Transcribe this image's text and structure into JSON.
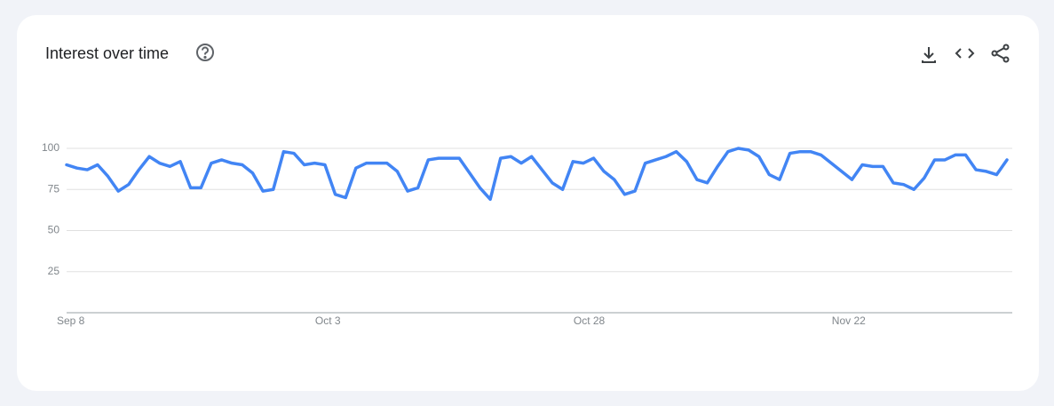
{
  "chart_data": {
    "type": "line",
    "title": "Interest over time",
    "categories": [
      "Sep 8",
      null,
      null,
      null,
      null,
      null,
      null,
      null,
      null,
      null,
      null,
      null,
      null,
      null,
      null,
      null,
      null,
      null,
      null,
      null,
      null,
      null,
      null,
      null,
      null,
      "Oct 3",
      null,
      null,
      null,
      null,
      null,
      null,
      null,
      null,
      null,
      null,
      null,
      null,
      null,
      null,
      null,
      null,
      null,
      null,
      null,
      null,
      null,
      null,
      null,
      null,
      "Oct 28",
      null,
      null,
      null,
      null,
      null,
      null,
      null,
      null,
      null,
      null,
      null,
      null,
      null,
      null,
      null,
      null,
      null,
      null,
      null,
      null,
      null,
      null,
      null,
      null,
      "Nov 22",
      null,
      null,
      null,
      null,
      null,
      null,
      null,
      null,
      null,
      null,
      null,
      null,
      null,
      null,
      null,
      null
    ],
    "series": [
      {
        "color": "#4285f4",
        "values": [
          90,
          88,
          87,
          90,
          83,
          74,
          78,
          87,
          95,
          91,
          89,
          92,
          76,
          76,
          91,
          93,
          91,
          90,
          85,
          74,
          75,
          98,
          97,
          90,
          91,
          90,
          72,
          70,
          88,
          91,
          91,
          91,
          86,
          74,
          76,
          93,
          94,
          94,
          94,
          85,
          76,
          69,
          94,
          95,
          91,
          95,
          87,
          79,
          75,
          92,
          91,
          94,
          86,
          81,
          72,
          74,
          91,
          93,
          95,
          98,
          92,
          81,
          79,
          89,
          98,
          100,
          99,
          95,
          84,
          81,
          97,
          98,
          98,
          96,
          91,
          86,
          81,
          90,
          89,
          89,
          79,
          78,
          75,
          82,
          93,
          93,
          96,
          96,
          87,
          86,
          84,
          93
        ]
      }
    ],
    "ylim": [
      0,
      100
    ],
    "yticks": [
      25,
      50,
      75,
      100
    ],
    "grid": true
  }
}
